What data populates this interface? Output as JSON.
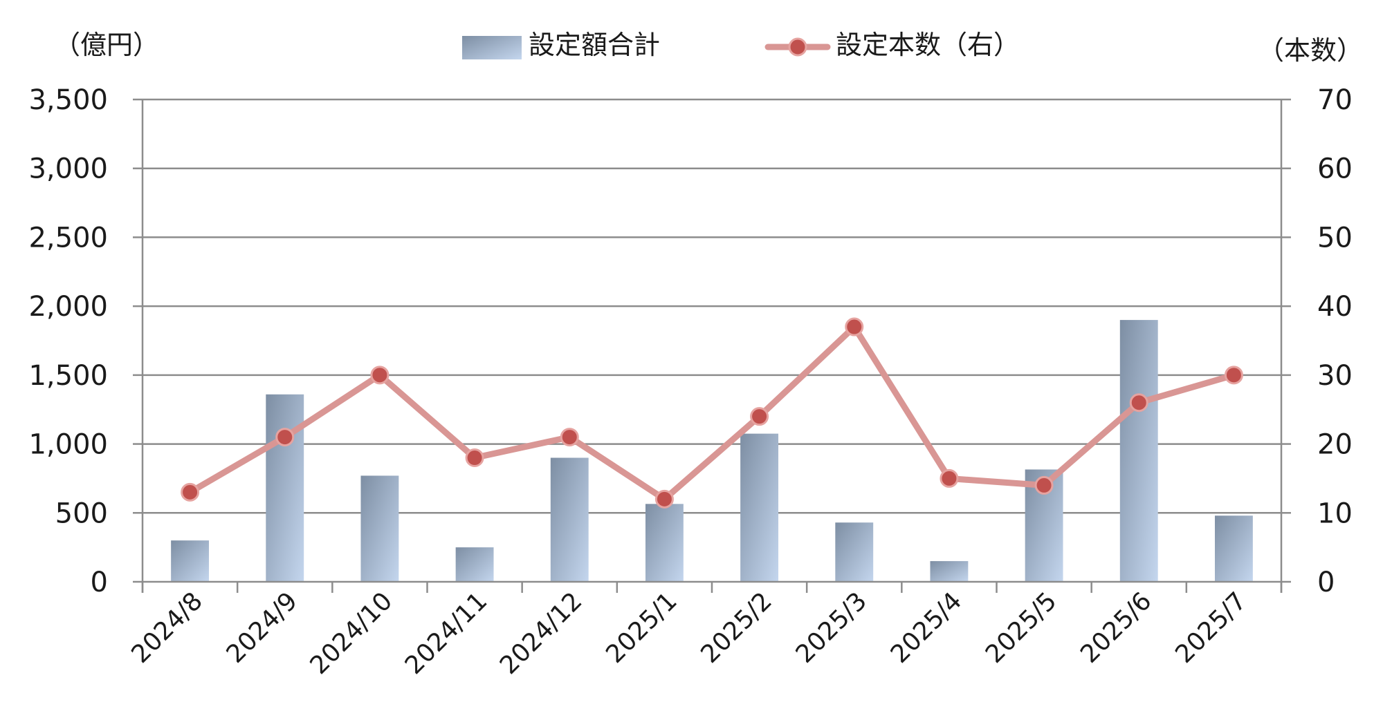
{
  "chart_data": {
    "type": "bar+line",
    "categories": [
      "2024/8",
      "2024/9",
      "2024/10",
      "2024/11",
      "2024/12",
      "2025/1",
      "2025/2",
      "2025/3",
      "2025/4",
      "2025/5",
      "2025/6",
      "2025/7"
    ],
    "series": [
      {
        "name": "設定額合計",
        "type": "bar",
        "axis": "left",
        "values": [
          300,
          1360,
          770,
          250,
          900,
          565,
          1075,
          430,
          150,
          815,
          1900,
          480
        ]
      },
      {
        "name": "設定本数（右）",
        "type": "line",
        "axis": "right",
        "values": [
          13,
          21,
          30,
          18,
          21,
          12,
          24,
          37,
          15,
          14,
          26,
          30
        ]
      }
    ],
    "left_axis": {
      "unit": "（億円）",
      "ylim": [
        0,
        3500
      ],
      "ticks": [
        "0",
        "500",
        "1,000",
        "1,500",
        "2,000",
        "2,500",
        "3,000",
        "3,500"
      ]
    },
    "right_axis": {
      "unit": "（本数）",
      "ylim": [
        0,
        70
      ],
      "ticks": [
        "0",
        "10",
        "20",
        "30",
        "40",
        "50",
        "60",
        "70"
      ]
    },
    "grid": true,
    "legend_position": "top",
    "colors": {
      "bar_dark": "#7d8ea3",
      "bar_light": "#c4d6ee",
      "line": "#d99694",
      "marker_fill": "#c0504d",
      "marker_edge": "#e6a3a0"
    }
  }
}
